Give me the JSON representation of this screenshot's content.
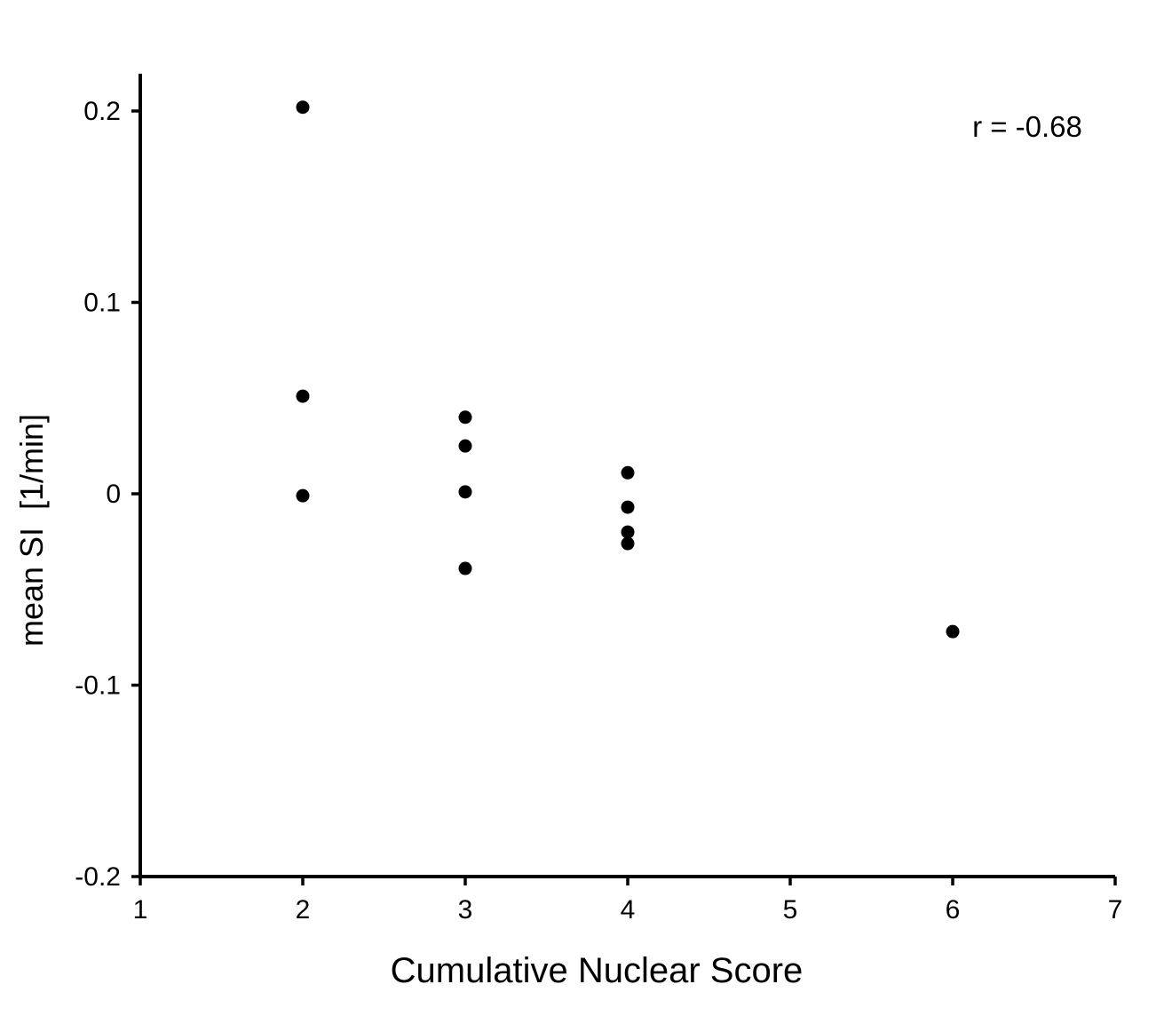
{
  "figure": {
    "background": "#ffffff",
    "foreground": "#000000"
  },
  "chart_data": {
    "type": "scatter",
    "title": "",
    "xlabel": "Cumulative Nuclear Score",
    "ylabel": "mean SI  [1/min]",
    "annotation": "r = -0.68",
    "marker_color": "#000000",
    "marker_shape": "filled-circle",
    "grid": false,
    "legend": "none",
    "xlim": [
      1,
      7
    ],
    "ylim": [
      -0.2,
      0.22
    ],
    "x_ticks": [
      {
        "value": 1,
        "label": "1"
      },
      {
        "value": 2,
        "label": "2"
      },
      {
        "value": 3,
        "label": "3"
      },
      {
        "value": 4,
        "label": "4"
      },
      {
        "value": 5,
        "label": "5"
      },
      {
        "value": 6,
        "label": "6"
      },
      {
        "value": 7,
        "label": "7"
      }
    ],
    "y_ticks": [
      {
        "value": -0.2,
        "label": "-0.2"
      },
      {
        "value": -0.1,
        "label": "-0.1"
      },
      {
        "value": 0,
        "label": "0"
      },
      {
        "value": 0.1,
        "label": "0.1"
      },
      {
        "value": 0.2,
        "label": "0.2"
      }
    ],
    "points": [
      {
        "x": 2,
        "y": 0.202
      },
      {
        "x": 2,
        "y": 0.051
      },
      {
        "x": 2,
        "y": -0.001
      },
      {
        "x": 3,
        "y": 0.04
      },
      {
        "x": 3,
        "y": 0.025
      },
      {
        "x": 3,
        "y": 0.001
      },
      {
        "x": 3,
        "y": -0.039
      },
      {
        "x": 4,
        "y": 0.011
      },
      {
        "x": 4,
        "y": -0.007
      },
      {
        "x": 4,
        "y": -0.02
      },
      {
        "x": 4,
        "y": -0.026
      },
      {
        "x": 6,
        "y": -0.072
      }
    ]
  }
}
